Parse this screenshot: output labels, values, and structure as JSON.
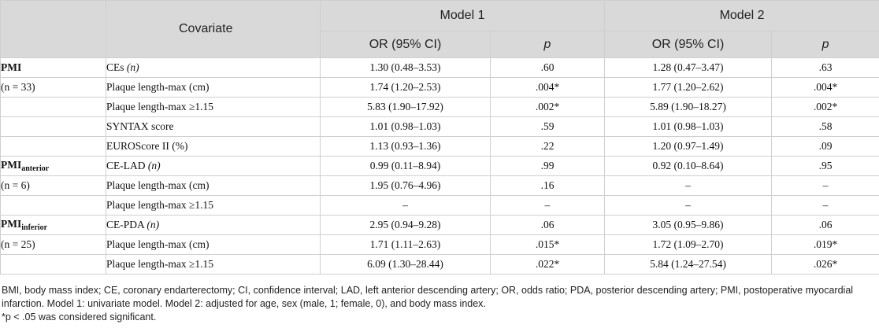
{
  "header": {
    "covariate": "Covariate",
    "model1": "Model 1",
    "model2": "Model 2",
    "or_ci": "OR (95% CI)",
    "p": "p"
  },
  "rows": [
    {
      "group": "PMI",
      "group_sub": "",
      "covariate": "CEs",
      "cov_suffix": "(n)",
      "or1": "1.30 (0.48–3.53)",
      "p1": ".60",
      "or2": "1.28 (0.47–3.47)",
      "p2": ".63"
    },
    {
      "group": "(n = 33)",
      "group_sub": "",
      "covariate": "Plaque length-max (cm)",
      "cov_suffix": "",
      "or1": "1.74 (1.20–2.53)",
      "p1": ".004*",
      "or2": "1.77 (1.20–2.62)",
      "p2": ".004*"
    },
    {
      "group": "",
      "group_sub": "",
      "covariate": "Plaque length-max ≥1.15",
      "cov_suffix": "",
      "or1": "5.83 (1.90–17.92)",
      "p1": ".002*",
      "or2": "5.89 (1.90–18.27)",
      "p2": ".002*"
    },
    {
      "group": "",
      "group_sub": "",
      "covariate": "SYNTAX score",
      "cov_suffix": "",
      "or1": "1.01 (0.98–1.03)",
      "p1": ".59",
      "or2": "1.01 (0.98–1.03)",
      "p2": ".58"
    },
    {
      "group": "",
      "group_sub": "",
      "covariate": "EUROScore II (%)",
      "cov_suffix": "",
      "or1": "1.13 (0.93–1.36)",
      "p1": ".22",
      "or2": "1.20 (0.97–1.49)",
      "p2": ".09"
    },
    {
      "group": "PMI",
      "group_sub": "anterior",
      "covariate": "CE-LAD",
      "cov_suffix": "(n)",
      "or1": "0.99 (0.11–8.94)",
      "p1": ".99",
      "or2": "0.92 (0.10–8.64)",
      "p2": ".95"
    },
    {
      "group": "(n = 6)",
      "group_sub": "",
      "covariate": "Plaque length-max (cm)",
      "cov_suffix": "",
      "or1": "1.95 (0.76–4.96)",
      "p1": ".16",
      "or2": "–",
      "p2": "–"
    },
    {
      "group": "",
      "group_sub": "",
      "covariate": "Plaque length-max ≥1.15",
      "cov_suffix": "",
      "or1": "–",
      "p1": "–",
      "or2": "–",
      "p2": "–"
    },
    {
      "group": "PMI",
      "group_sub": "inferior",
      "covariate": "CE-PDA",
      "cov_suffix": "(n)",
      "or1": "2.95 (0.94–9.28)",
      "p1": ".06",
      "or2": "3.05 (0.95–9.86)",
      "p2": ".06"
    },
    {
      "group": "(n = 25)",
      "group_sub": "",
      "covariate": "Plaque length-max (cm)",
      "cov_suffix": "",
      "or1": "1.71 (1.11–2.63)",
      "p1": ".015*",
      "or2": "1.72 (1.09–2.70)",
      "p2": ".019*"
    },
    {
      "group": "",
      "group_sub": "",
      "covariate": "Plaque length-max ≥1.15",
      "cov_suffix": "",
      "or1": "6.09 (1.30–28.44)",
      "p1": ".022*",
      "or2": "5.84 (1.24–27.54)",
      "p2": ".026*"
    }
  ],
  "notes": {
    "abbreviations": "BMI, body mass index; CE, coronary endarterectomy; CI, confidence interval; LAD, left anterior descending artery; OR, odds ratio; PDA, posterior descending artery; PMI, postoperative myocardial infarction. Model 1: univariate model. Model 2: adjusted for age, sex (male, 1; female, 0), and body mass index.",
    "significance": "*p < .05 was considered significant."
  }
}
